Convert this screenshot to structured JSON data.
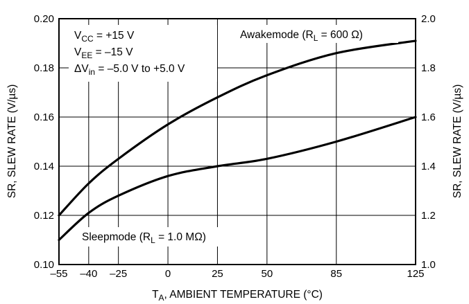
{
  "chart_data": {
    "type": "line",
    "title": "",
    "xlabel": {
      "main": "T",
      "sub": "A",
      "rest": ", AMBIENT TEMPERATURE (°C)"
    },
    "ylabel_left": "SR, SLEW RATE (V/µs)",
    "ylabel_right": "SR, SLEW RATE (V/µs)",
    "x_ticks": [
      -55,
      -40,
      -25,
      0,
      25,
      50,
      85,
      125
    ],
    "x_tick_labels": [
      "–55",
      "–40",
      "–25",
      "0",
      "25",
      "50",
      "85",
      "125"
    ],
    "xlim": [
      -55,
      125
    ],
    "ylim_left": [
      0.1,
      0.2
    ],
    "y_ticks_left": [
      "0.10",
      "0.12",
      "0.14",
      "0.16",
      "0.18",
      "0.20"
    ],
    "ylim_right": [
      1.0,
      2.0
    ],
    "y_ticks_right": [
      "1.0",
      "1.2",
      "1.4",
      "1.6",
      "1.8",
      "2.0"
    ],
    "grid": true,
    "series": [
      {
        "name": "Awakemode",
        "axis": "right",
        "x": [
          -55,
          -40,
          -25,
          0,
          25,
          50,
          85,
          125
        ],
        "y": [
          1.2,
          1.33,
          1.43,
          1.57,
          1.68,
          1.77,
          1.86,
          1.91
        ]
      },
      {
        "name": "Sleepmode",
        "axis": "left",
        "x": [
          -55,
          -40,
          -25,
          0,
          25,
          50,
          85,
          125
        ],
        "y": [
          0.11,
          0.121,
          0.128,
          0.136,
          0.14,
          0.143,
          0.15,
          0.16
        ]
      }
    ],
    "annotations": {
      "awake": {
        "pre": "Awakemode (R",
        "sub": "L",
        "post": " = 600 Ω)"
      },
      "sleep": {
        "pre": "Sleepmode (R",
        "sub": "L",
        "post": " = 1.0 MΩ)"
      },
      "conditions": [
        {
          "pre": "V",
          "sub": "CC",
          "post": " = +15 V"
        },
        {
          "pre": "V",
          "sub": "EE",
          "post": " = –15 V"
        },
        {
          "pre": "ΔV",
          "sub": "in",
          "post": " = –5.0 V to +5.0 V"
        }
      ]
    }
  }
}
